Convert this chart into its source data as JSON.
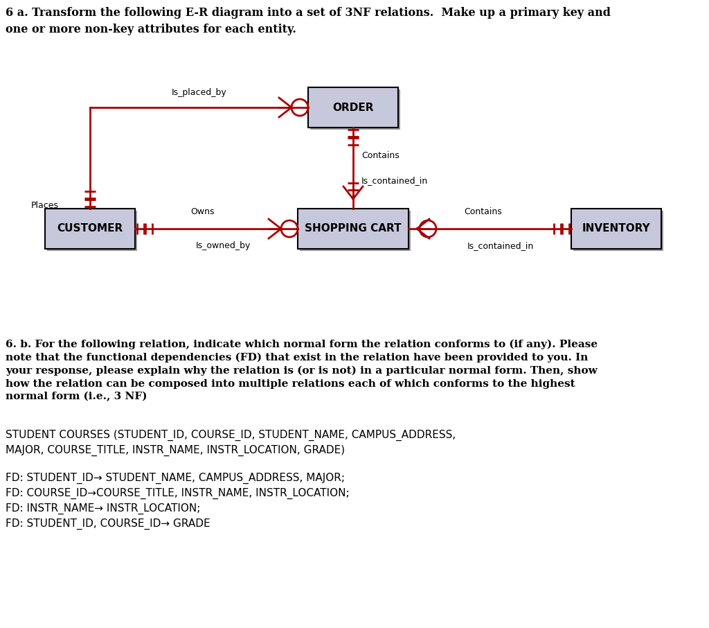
{
  "title_part1": "6 a. Transform the following E-R diagram into a set of 3NF relations.  Make up a primary key and",
  "title_part2": "one or more non-key attributes for each entity.",
  "bg_color": "#ffffff",
  "entity_fill": "#c8c8dc",
  "entity_edge": "#000000",
  "line_color": "#aa0000",
  "section_b_title": "6. b. For the following relation, indicate which normal form the relation conforms to (if any). Please\nnote that the functional dependencies (FD) that exist in the relation have been provided to you. In\nyour response, please explain why the relation is (or is not) in a particular normal form. Then, show\nhow the relation can be composed into multiple relations each of which conforms to the highest\nnormal form (i.e., 3 NF)",
  "relation_line1": "STUDENT COURSES (STUDENT_ID, COURSE_ID, STUDENT_NAME, CAMPUS_ADDRESS,",
  "relation_line2": "MAJOR, COURSE_TITLE, INSTR_NAME, INSTR_LOCATION, GRADE)",
  "fd_lines": [
    "FD: STUDENT_ID→ STUDENT_NAME, CAMPUS_ADDRESS, MAJOR;",
    "FD: COURSE_ID→COURSE_TITLE, INSTR_NAME, INSTR_LOCATION;",
    "FD: INSTR_NAME→ INSTR_LOCATION;",
    "FD: STUDENT_ID, COURSE_ID→ GRADE"
  ]
}
